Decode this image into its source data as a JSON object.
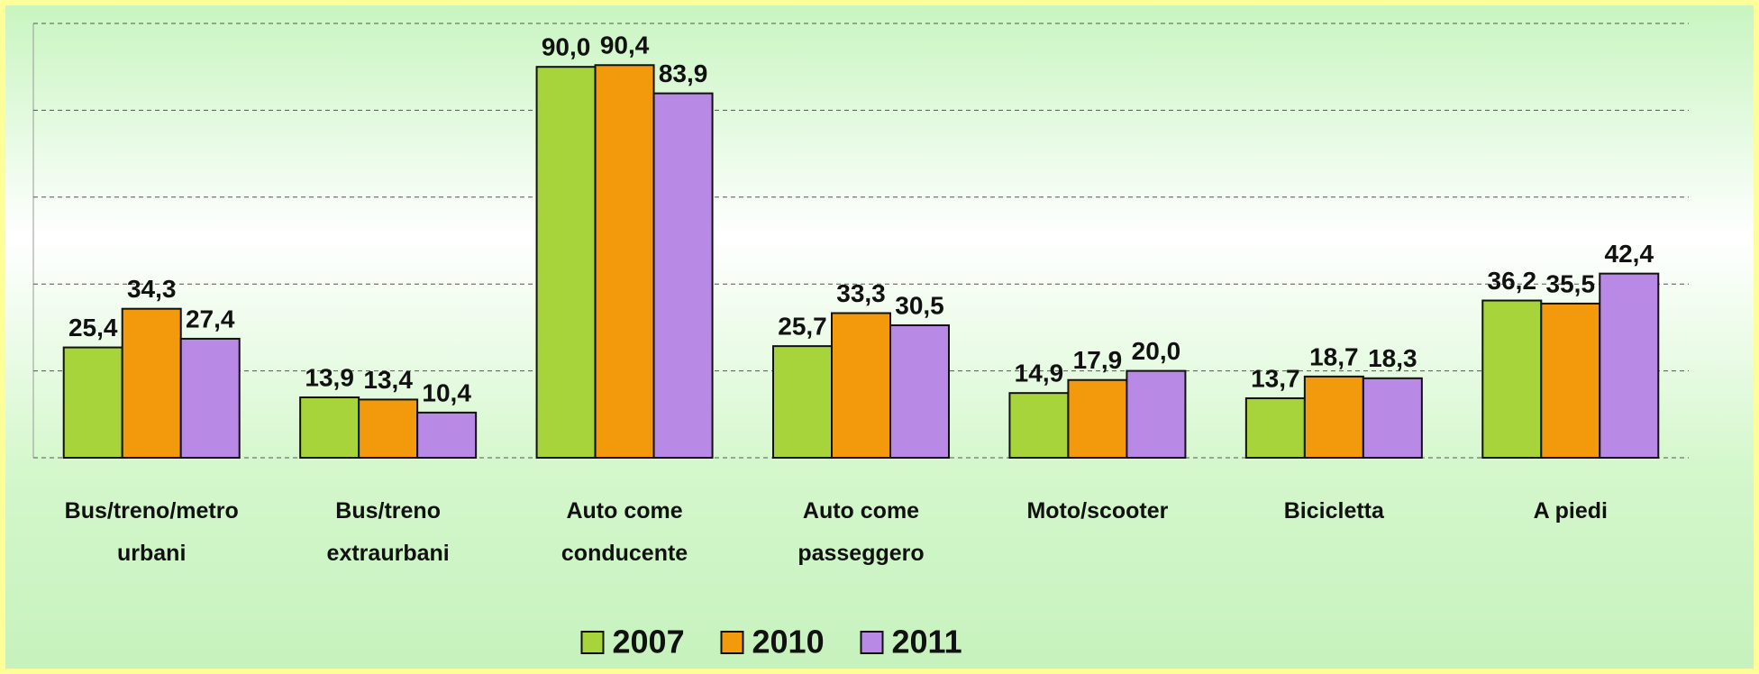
{
  "chart_data": {
    "type": "bar",
    "categories": [
      "Bus/treno/metro urbani",
      "Bus/treno extraurbani",
      "Auto come conducente",
      "Auto come passeggero",
      "Moto/scooter",
      "Bicicletta",
      "A piedi"
    ],
    "series": [
      {
        "name": "2007",
        "color": "#a6d43a",
        "values": [
          25.4,
          13.9,
          90.0,
          25.7,
          14.9,
          13.7,
          36.2
        ],
        "value_labels": [
          "25,4",
          "13,9",
          "90,0",
          "25,7",
          "14,9",
          "13,7",
          "36,2"
        ]
      },
      {
        "name": "2010",
        "color": "#f39a0c",
        "values": [
          34.3,
          13.4,
          90.4,
          33.3,
          17.9,
          18.7,
          35.5
        ],
        "value_labels": [
          "34,3",
          "13,4",
          "90,4",
          "33,3",
          "17,9",
          "18,7",
          "35,5"
        ]
      },
      {
        "name": "2011",
        "color": "#b88ae6",
        "values": [
          27.4,
          10.4,
          83.9,
          30.5,
          20.0,
          18.3,
          42.4
        ],
        "value_labels": [
          "27,4",
          "10,4",
          "83,9",
          "30,5",
          "20,0",
          "18,3",
          "42,4"
        ]
      }
    ],
    "ylim": [
      0,
      100
    ],
    "yticks": [
      0,
      20,
      40,
      60,
      80,
      100
    ],
    "grid": true,
    "legend": "bottom"
  }
}
